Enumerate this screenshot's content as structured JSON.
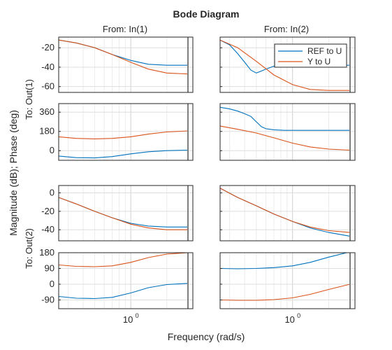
{
  "chart_data": {
    "type": "line",
    "title": "Bode Diagram",
    "xlabel": "Frequency (rad/s)",
    "ylabel": "Magnitude (dB); Phase (deg)",
    "x_scale": "log",
    "xlim": [
      0.25,
      3.3
    ],
    "x_tick_labels": [
      {
        "value": 1,
        "base": "10",
        "exponent": "0"
      },
      {
        "value": 1,
        "base": "10",
        "exponent": "0"
      }
    ],
    "column_titles": [
      "From: In(1)",
      "From: In(2)"
    ],
    "row_titles": [
      "To: Out(1)",
      "To: Out(2)"
    ],
    "grid": true,
    "legend": {
      "placement": "top-right of panel (1,2)",
      "entries": [
        "REF to U",
        "Y to U"
      ]
    },
    "series_colors": {
      "REF to U": "#0072BD",
      "Y to U": "#D95319"
    },
    "panels": [
      {
        "row": 0,
        "col": 0,
        "kind": "magnitude",
        "ylim": [
          -66,
          -9
        ],
        "yticks": [
          -20,
          -40,
          -60
        ],
        "series": [
          {
            "name": "REF to U",
            "x": [
              0.25,
              0.35,
              0.5,
              0.7,
              1.0,
              1.4,
              2.0,
              3.0
            ],
            "y": [
              -12,
              -15,
              -20,
              -27,
              -33,
              -37,
              -38,
              -38
            ]
          },
          {
            "name": "Y to U",
            "x": [
              0.25,
              0.35,
              0.5,
              0.7,
              1.0,
              1.4,
              2.0,
              3.0
            ],
            "y": [
              -12,
              -15,
              -20,
              -27,
              -35,
              -42,
              -46,
              -47
            ]
          }
        ]
      },
      {
        "row": 0,
        "col": 1,
        "kind": "magnitude",
        "ylim": [
          -66,
          -9
        ],
        "yticks": [
          -20,
          -40,
          -60
        ],
        "series": [
          {
            "name": "REF to U",
            "x": [
              0.25,
              0.3,
              0.35,
              0.4,
              0.45,
              0.5,
              0.55,
              0.6,
              0.7,
              0.85,
              1.0,
              1.4,
              2.0,
              3.0
            ],
            "y": [
              -12,
              -17,
              -26,
              -35,
              -43,
              -46,
              -44,
              -42,
              -39,
              -38,
              -38,
              -38,
              -38,
              -38
            ]
          },
          {
            "name": "Y to U",
            "x": [
              0.25,
              0.35,
              0.5,
              0.7,
              1.0,
              1.4,
              2.0,
              3.0
            ],
            "y": [
              -12,
              -20,
              -34,
              -48,
              -58,
              -63,
              -64,
              -64
            ]
          }
        ]
      },
      {
        "row": 1,
        "col": 0,
        "kind": "phase",
        "ylim": [
          -90,
          440
        ],
        "yticks": [
          360,
          180,
          0
        ],
        "series": [
          {
            "name": "REF to U",
            "x": [
              0.25,
              0.35,
              0.5,
              0.7,
              1.0,
              1.4,
              2.0,
              3.0
            ],
            "y": [
              -50,
              -65,
              -68,
              -55,
              -30,
              -10,
              0,
              5
            ]
          },
          {
            "name": "Y to U",
            "x": [
              0.25,
              0.35,
              0.5,
              0.7,
              1.0,
              1.4,
              2.0,
              3.0
            ],
            "y": [
              130,
              115,
              110,
              115,
              130,
              155,
              175,
              185
            ]
          }
        ]
      },
      {
        "row": 1,
        "col": 1,
        "kind": "phase",
        "ylim": [
          -90,
          440
        ],
        "yticks": [
          360,
          180,
          0
        ],
        "series": [
          {
            "name": "REF to U",
            "x": [
              0.25,
              0.3,
              0.35,
              0.4,
              0.45,
              0.5,
              0.55,
              0.6,
              0.7,
              0.85,
              1.0,
              1.4,
              2.0,
              3.0
            ],
            "y": [
              405,
              390,
              370,
              345,
              320,
              270,
              225,
              205,
              195,
              190,
              190,
              190,
              190,
              190
            ]
          },
          {
            "name": "Y to U",
            "x": [
              0.25,
              0.35,
              0.5,
              0.7,
              1.0,
              1.4,
              2.0,
              3.0
            ],
            "y": [
              230,
              200,
              165,
              120,
              70,
              35,
              15,
              5
            ]
          }
        ]
      },
      {
        "row": 2,
        "col": 0,
        "kind": "magnitude",
        "ylim": [
          -52,
          8
        ],
        "yticks": [
          0,
          -20,
          -40
        ],
        "series": [
          {
            "name": "REF to U",
            "x": [
              0.25,
              0.35,
              0.5,
              0.7,
              1.0,
              1.4,
              2.0,
              3.0
            ],
            "y": [
              -5,
              -12,
              -20,
              -27,
              -33,
              -36,
              -37,
              -37
            ]
          },
          {
            "name": "Y to U",
            "x": [
              0.25,
              0.35,
              0.5,
              0.7,
              1.0,
              1.4,
              2.0,
              3.0
            ],
            "y": [
              -5,
              -12,
              -20,
              -27,
              -34,
              -38,
              -40,
              -40
            ]
          }
        ]
      },
      {
        "row": 2,
        "col": 1,
        "kind": "magnitude",
        "ylim": [
          -52,
          8
        ],
        "yticks": [
          0,
          -20,
          -40
        ],
        "series": [
          {
            "name": "REF to U",
            "x": [
              0.25,
              0.35,
              0.5,
              0.7,
              1.0,
              1.4,
              2.0,
              3.0
            ],
            "y": [
              5,
              -5,
              -14,
              -23,
              -31,
              -38,
              -43,
              -47
            ]
          },
          {
            "name": "Y to U",
            "x": [
              0.25,
              0.35,
              0.5,
              0.7,
              1.0,
              1.4,
              2.0,
              3.0
            ],
            "y": [
              5,
              -5,
              -14,
              -23,
              -31,
              -37,
              -41,
              -43
            ]
          }
        ]
      },
      {
        "row": 3,
        "col": 0,
        "kind": "phase",
        "ylim": [
          -140,
          180
        ],
        "yticks": [
          180,
          90,
          0,
          -90
        ],
        "series": [
          {
            "name": "REF to U",
            "x": [
              0.25,
              0.35,
              0.5,
              0.7,
              1.0,
              1.4,
              2.0,
              3.0
            ],
            "y": [
              -70,
              -80,
              -82,
              -75,
              -50,
              -20,
              -2,
              5
            ]
          },
          {
            "name": "Y to U",
            "x": [
              0.25,
              0.35,
              0.5,
              0.7,
              1.0,
              1.4,
              2.0,
              3.0
            ],
            "y": [
              110,
              102,
              100,
              105,
              125,
              152,
              172,
              180
            ]
          }
        ]
      },
      {
        "row": 3,
        "col": 1,
        "kind": "phase",
        "ylim": [
          -140,
          180
        ],
        "yticks": [
          180,
          90,
          0,
          -90
        ],
        "series": [
          {
            "name": "REF to U",
            "x": [
              0.25,
              0.35,
              0.5,
              0.7,
              1.0,
              1.4,
              2.0,
              3.0
            ],
            "y": [
              90,
              88,
              90,
              95,
              105,
              125,
              155,
              185
            ]
          },
          {
            "name": "Y to U",
            "x": [
              0.25,
              0.35,
              0.5,
              0.7,
              1.0,
              1.4,
              2.0,
              3.0
            ],
            "y": [
              -90,
              -92,
              -92,
              -88,
              -78,
              -58,
              -30,
              0
            ]
          }
        ]
      }
    ]
  }
}
